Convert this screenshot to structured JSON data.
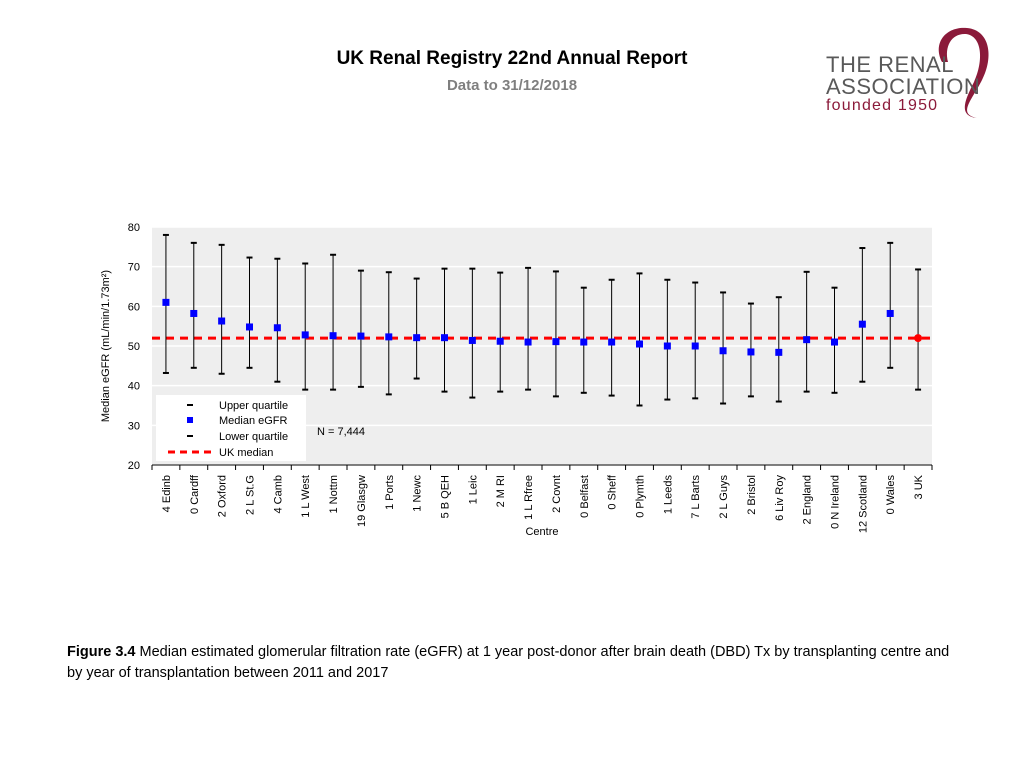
{
  "header": {
    "title": "UK Renal Registry 22nd Annual Report",
    "subtitle": "Data to 31/12/2018"
  },
  "logo": {
    "line1": "THE RENAL",
    "line2": "ASSOCIATION",
    "line3": "founded 1950"
  },
  "caption": {
    "label": "Figure 3.4",
    "text": " Median estimated glomerular filtration rate (eGFR) at 1 year post-donor after brain death (DBD) Tx by transplanting centre and by year of transplantation between 2011 and 2017"
  },
  "colors": {
    "median_marker": "#0000ff",
    "uk_median_line": "#ff0000",
    "whisker": "#000000",
    "plot_background": "#eeeeee"
  },
  "chart_data": {
    "type": "scatter",
    "title": "",
    "xlabel": "Centre",
    "ylabel": "Median eGFR (mL/min/1.73m²)",
    "ylim": [
      20,
      80
    ],
    "yticks": [
      20,
      30,
      40,
      50,
      60,
      70,
      80
    ],
    "annotation": "N = 7,444",
    "uk_median": 52,
    "legend": {
      "placement": "bottom-left",
      "entries": [
        "Upper quartile",
        "Median eGFR",
        "Lower quartile",
        "UK median"
      ]
    },
    "categories": [
      "4 Edinb",
      "0 Cardff",
      "2 Oxford",
      "2 L St.G",
      "4 Camb",
      "1 L West",
      "1 Nottm",
      "19 Glasgw",
      "1 Ports",
      "1 Newc",
      "5 B QEH",
      "1 Leic",
      "2 M RI",
      "1 L Rfree",
      "2 Covnt",
      "0 Belfast",
      "0 Sheff",
      "0 Plymth",
      "1 Leeds",
      "7 L Barts",
      "2 L Guys",
      "2 Bristol",
      "6 Liv Roy",
      "2 England",
      "0 N Ireland",
      "12 Scotland",
      "0 Wales",
      "3 UK"
    ],
    "median": [
      61,
      58.2,
      56.3,
      54.8,
      54.6,
      52.8,
      52.6,
      52.5,
      52.3,
      52.1,
      52.1,
      51.4,
      51.2,
      51.0,
      51.1,
      51.0,
      51.0,
      50.5,
      50.0,
      50.0,
      48.8,
      48.5,
      48.4,
      51.6,
      51.0,
      55.5,
      58.2,
      52.0
    ],
    "upper_quartile": [
      78,
      76,
      75.5,
      72.3,
      72,
      70.8,
      73,
      69,
      68.6,
      67,
      69.5,
      69.5,
      68.5,
      69.7,
      68.8,
      64.7,
      66.7,
      68.3,
      66.7,
      66,
      63.5,
      60.7,
      62.3,
      68.7,
      64.7,
      74.7,
      76,
      69.3
    ],
    "lower_quartile": [
      43.2,
      44.5,
      43,
      44.5,
      41,
      39,
      39,
      39.7,
      37.8,
      41.8,
      38.5,
      37,
      38.5,
      39,
      37.3,
      38.2,
      37.5,
      35,
      36.5,
      36.8,
      35.5,
      37.3,
      36,
      38.5,
      38.2,
      41,
      44.5,
      39
    ]
  }
}
